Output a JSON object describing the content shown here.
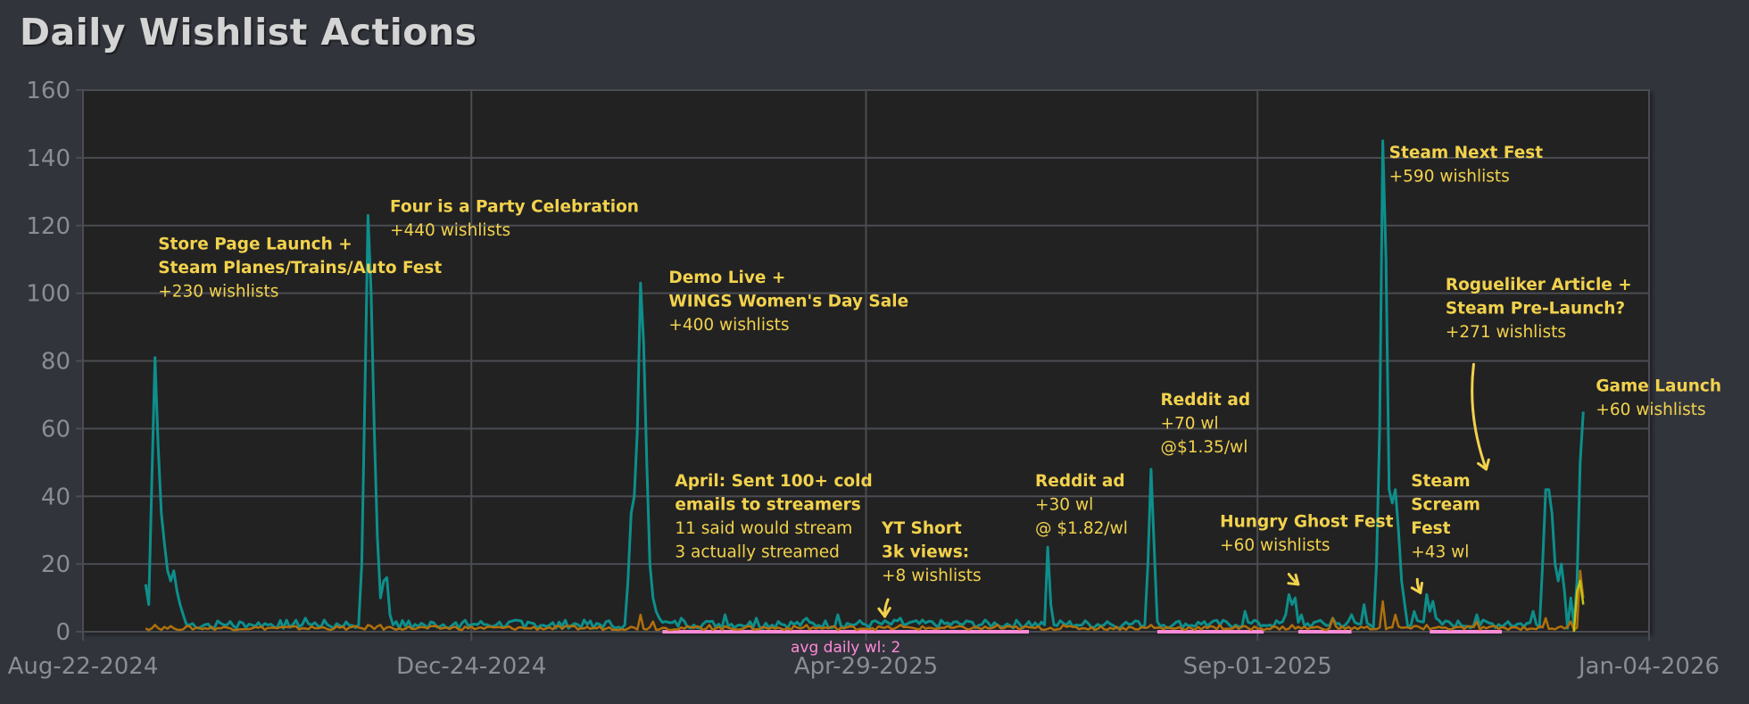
{
  "chart_data": {
    "type": "line",
    "title": "Daily Wishlist Actions",
    "xlabel": "",
    "ylabel": "",
    "ylim": [
      0,
      160
    ],
    "xlim": [
      "2024-08-22",
      "2026-01-04"
    ],
    "yticks": [
      0,
      20,
      40,
      60,
      80,
      100,
      120,
      140,
      160
    ],
    "xticks": [
      "Aug-22-2024",
      "Dec-24-2024",
      "Apr-29-2025",
      "Sep-01-2025",
      "Jan-04-2026"
    ],
    "grid": true,
    "legend": "none",
    "colors": {
      "primary": "#0d8f8c",
      "secondary": "#b0700c",
      "tertiary": "#c4c419",
      "annotation": "#f2d24d",
      "average": "#ff8ad8"
    },
    "series": [
      {
        "color": "#0d8f8c",
        "points": [
          [
            "2024-09-11",
            14
          ],
          [
            "2024-09-12",
            8
          ],
          [
            "2024-09-13",
            45
          ],
          [
            "2024-09-14",
            81
          ],
          [
            "2024-09-15",
            55
          ],
          [
            "2024-09-16",
            35
          ],
          [
            "2024-09-17",
            26
          ],
          [
            "2024-09-18",
            18
          ],
          [
            "2024-09-19",
            15
          ],
          [
            "2024-09-20",
            18
          ],
          [
            "2024-09-21",
            12
          ],
          [
            "2024-09-22",
            8
          ],
          [
            "2024-09-23",
            5
          ],
          [
            "2024-09-25",
            2
          ],
          [
            "2024-09-28",
            1
          ],
          [
            "2024-10-02",
            1
          ],
          [
            "2024-10-06",
            2
          ],
          [
            "2024-10-08",
            3
          ],
          [
            "2024-10-10",
            1
          ],
          [
            "2024-10-15",
            2
          ],
          [
            "2024-10-20",
            2
          ],
          [
            "2024-10-25",
            1
          ],
          [
            "2024-11-01",
            4
          ],
          [
            "2024-11-03",
            2
          ],
          [
            "2024-11-10",
            1
          ],
          [
            "2024-11-20",
            2
          ],
          [
            "2024-11-25",
            1
          ],
          [
            "2024-11-30",
            3
          ],
          [
            "2024-12-05",
            1
          ],
          [
            "2024-12-10",
            1
          ],
          [
            "2024-11-18",
            2
          ],
          [
            "2024-11-19",
            20
          ],
          [
            "2024-11-20",
            70
          ],
          [
            "2024-11-21",
            123
          ],
          [
            "2024-11-22",
            100
          ],
          [
            "2024-11-23",
            60
          ],
          [
            "2024-11-24",
            28
          ],
          [
            "2024-11-25",
            10
          ],
          [
            "2024-11-26",
            15
          ],
          [
            "2024-11-27",
            16
          ],
          [
            "2024-11-28",
            5
          ],
          [
            "2024-11-29",
            2
          ],
          [
            "2024-12-01",
            1
          ],
          [
            "2024-12-10",
            1
          ],
          [
            "2024-12-20",
            1
          ],
          [
            "2025-01-01",
            2
          ],
          [
            "2025-01-10",
            1
          ],
          [
            "2025-01-20",
            1
          ],
          [
            "2025-02-01",
            1
          ],
          [
            "2025-02-10",
            1
          ],
          [
            "2025-02-11",
            2
          ],
          [
            "2025-02-12",
            15
          ],
          [
            "2025-02-13",
            35
          ],
          [
            "2025-02-14",
            40
          ],
          [
            "2025-02-15",
            60
          ],
          [
            "2025-02-16",
            103
          ],
          [
            "2025-02-17",
            85
          ],
          [
            "2025-02-18",
            50
          ],
          [
            "2025-02-19",
            20
          ],
          [
            "2025-02-20",
            10
          ],
          [
            "2025-02-21",
            6
          ],
          [
            "2025-02-22",
            4
          ],
          [
            "2025-02-24",
            3
          ],
          [
            "2025-03-01",
            4
          ],
          [
            "2025-03-05",
            2
          ],
          [
            "2025-03-10",
            3
          ],
          [
            "2025-03-15",
            5
          ],
          [
            "2025-03-20",
            2
          ],
          [
            "2025-03-25",
            4
          ],
          [
            "2025-04-01",
            3
          ],
          [
            "2025-04-10",
            4
          ],
          [
            "2025-04-20",
            5
          ],
          [
            "2025-05-01",
            3
          ],
          [
            "2025-05-10",
            4
          ],
          [
            "2025-05-20",
            3
          ],
          [
            "2025-06-01",
            3
          ],
          [
            "2025-06-10",
            2
          ],
          [
            "2025-06-20",
            3
          ],
          [
            "2025-06-25",
            2
          ],
          [
            "2025-06-26",
            25
          ],
          [
            "2025-06-27",
            8
          ],
          [
            "2025-06-28",
            2
          ],
          [
            "2025-07-05",
            2
          ],
          [
            "2025-07-15",
            3
          ],
          [
            "2025-07-20",
            2
          ],
          [
            "2025-07-25",
            3
          ],
          [
            "2025-07-28",
            20
          ],
          [
            "2025-07-29",
            48
          ],
          [
            "2025-07-30",
            25
          ],
          [
            "2025-07-31",
            3
          ],
          [
            "2025-08-05",
            2
          ],
          [
            "2025-08-15",
            3
          ],
          [
            "2025-08-25",
            2
          ],
          [
            "2025-08-28",
            6
          ],
          [
            "2025-09-01",
            3
          ],
          [
            "2025-09-05",
            2
          ],
          [
            "2025-09-10",
            5
          ],
          [
            "2025-09-11",
            11
          ],
          [
            "2025-09-12",
            8
          ],
          [
            "2025-09-13",
            10
          ],
          [
            "2025-09-15",
            5
          ],
          [
            "2025-09-20",
            3
          ],
          [
            "2025-09-25",
            4
          ],
          [
            "2025-10-01",
            5
          ],
          [
            "2025-10-05",
            8
          ],
          [
            "2025-10-09",
            20
          ],
          [
            "2025-10-10",
            60
          ],
          [
            "2025-10-11",
            145
          ],
          [
            "2025-10-12",
            110
          ],
          [
            "2025-10-13",
            42
          ],
          [
            "2025-10-14",
            38
          ],
          [
            "2025-10-15",
            42
          ],
          [
            "2025-10-16",
            30
          ],
          [
            "2025-10-17",
            15
          ],
          [
            "2025-10-18",
            8
          ],
          [
            "2025-10-21",
            6
          ],
          [
            "2025-10-23",
            3
          ],
          [
            "2025-10-25",
            11
          ],
          [
            "2025-10-26",
            6
          ],
          [
            "2025-10-27",
            9
          ],
          [
            "2025-10-28",
            4
          ],
          [
            "2025-11-01",
            3
          ],
          [
            "2025-11-10",
            5
          ],
          [
            "2025-11-20",
            3
          ],
          [
            "2025-11-28",
            6
          ],
          [
            "2025-12-01",
            20
          ],
          [
            "2025-12-02",
            42
          ],
          [
            "2025-12-03",
            42
          ],
          [
            "2025-12-04",
            35
          ],
          [
            "2025-12-05",
            20
          ],
          [
            "2025-12-06",
            15
          ],
          [
            "2025-12-07",
            20
          ],
          [
            "2025-12-08",
            12
          ],
          [
            "2025-12-10",
            10
          ],
          [
            "2025-12-12",
            15
          ],
          [
            "2025-12-13",
            50
          ],
          [
            "2025-12-14",
            65
          ]
        ]
      },
      {
        "color": "#b0700c",
        "points": [
          [
            "2024-09-11",
            1
          ],
          [
            "2024-09-14",
            2
          ],
          [
            "2024-09-20",
            1
          ],
          [
            "2024-10-15",
            1
          ],
          [
            "2024-11-21",
            2
          ],
          [
            "2024-11-25",
            2
          ],
          [
            "2024-12-01",
            1
          ],
          [
            "2025-01-10",
            1
          ],
          [
            "2025-02-16",
            5
          ],
          [
            "2025-02-20",
            3
          ],
          [
            "2025-03-10",
            2
          ],
          [
            "2025-04-10",
            2
          ],
          [
            "2025-05-10",
            2
          ],
          [
            "2025-06-10",
            2
          ],
          [
            "2025-07-01",
            2
          ],
          [
            "2025-07-29",
            2
          ],
          [
            "2025-08-20",
            2
          ],
          [
            "2025-09-12",
            2
          ],
          [
            "2025-09-25",
            4
          ],
          [
            "2025-10-11",
            9
          ],
          [
            "2025-10-15",
            5
          ],
          [
            "2025-10-25",
            2
          ],
          [
            "2025-11-10",
            3
          ],
          [
            "2025-12-02",
            4
          ],
          [
            "2025-12-10",
            3
          ],
          [
            "2025-12-13",
            18
          ],
          [
            "2025-12-14",
            10
          ]
        ]
      },
      {
        "color": "#c4c419",
        "points": [
          [
            "2025-12-11",
            0
          ],
          [
            "2025-12-12",
            12
          ],
          [
            "2025-12-13",
            15
          ],
          [
            "2025-12-14",
            8
          ]
        ]
      }
    ],
    "average_segments": [
      {
        "from": "2025-02-23",
        "to": "2025-06-20",
        "label": "avg daily wl: 2"
      },
      {
        "from": "2025-07-31",
        "to": "2025-09-03",
        "label": ""
      },
      {
        "from": "2025-09-14",
        "to": "2025-10-01",
        "label": ""
      },
      {
        "from": "2025-10-26",
        "to": "2025-11-18",
        "label": ""
      }
    ],
    "annotations": [
      {
        "x": "2024-09-15",
        "y": 113,
        "lines": [
          "Store Page Launch +",
          "Steam Planes/Trains/Auto Fest",
          "+230 wishlists"
        ],
        "bold": 2
      },
      {
        "x": "2024-11-28",
        "y": 124,
        "lines": [
          "Four is a Party Celebration",
          "+440 wishlists"
        ],
        "bold": 1
      },
      {
        "x": "2025-02-25",
        "y": 103,
        "lines": [
          "Demo Live +",
          "WINGS Women's Day Sale",
          "+400 wishlists"
        ],
        "bold": 2
      },
      {
        "x": "2025-02-27",
        "y": 43,
        "lines": [
          "April: Sent 100+ cold",
          "emails to streamers",
          "11 said would stream",
          "3 actually streamed"
        ],
        "bold": 2
      },
      {
        "x": "2025-05-04",
        "y": 29,
        "lines": [
          "YT Short",
          "3k views:",
          "+8 wishlists"
        ],
        "bold": 2
      },
      {
        "x": "2025-06-22",
        "y": 43,
        "lines": [
          "Reddit ad",
          "+30 wl",
          "@ $1.82/wl"
        ],
        "bold": 1
      },
      {
        "x": "2025-08-01",
        "y": 67,
        "lines": [
          "Reddit ad",
          "+70 wl",
          "@$1.35/wl"
        ],
        "bold": 1
      },
      {
        "x": "2025-08-20",
        "y": 31,
        "lines": [
          "Hungry Ghost Fest",
          "+60 wishlists"
        ],
        "bold": 1
      },
      {
        "x": "2025-10-13",
        "y": 140,
        "lines": [
          "Steam Next Fest",
          "+590 wishlists"
        ],
        "bold": 1
      },
      {
        "x": "2025-10-20",
        "y": 43,
        "lines": [
          "Steam",
          "Scream",
          "Fest",
          "+43 wl"
        ],
        "bold": 3
      },
      {
        "x": "2025-10-31",
        "y": 101,
        "lines": [
          "Rogueliker Article +",
          "Steam Pre-Launch?",
          "+271 wishlists"
        ],
        "bold": 2
      },
      {
        "x": "2025-12-18",
        "y": 71,
        "lines": [
          "Game Launch",
          "+60 wishlists"
        ],
        "bold": 1
      }
    ],
    "arrows": [
      {
        "from": [
          "2025-11-09",
          79
        ],
        "to": [
          "2025-11-13",
          48
        ]
      },
      {
        "from": [
          "2025-05-06",
          9.5
        ],
        "to": [
          "2025-05-05",
          4.5
        ]
      },
      {
        "from": [
          "2025-09-11",
          17
        ],
        "to": [
          "2025-09-14",
          14
        ]
      },
      {
        "from": [
          "2025-10-22",
          15.5
        ],
        "to": [
          "2025-10-23",
          11.5
        ]
      }
    ]
  }
}
